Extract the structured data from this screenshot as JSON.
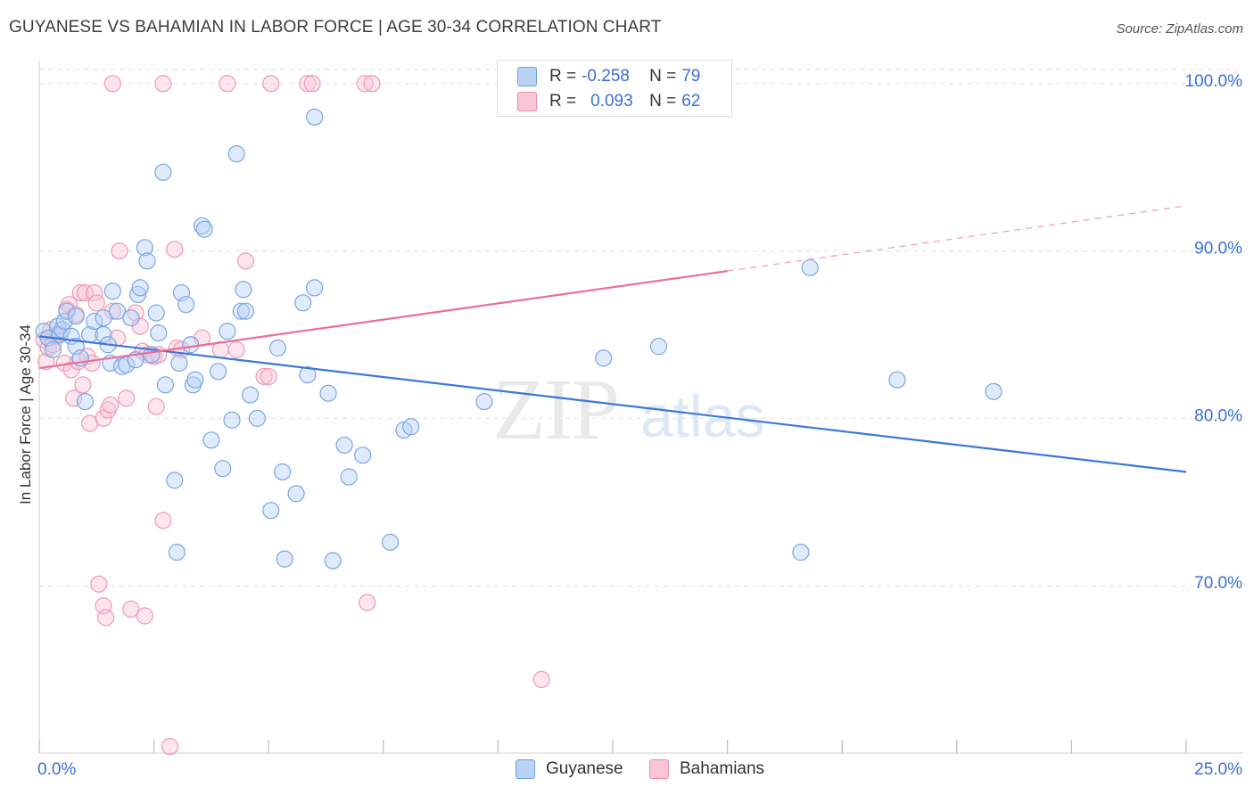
{
  "header": {
    "title": "GUYANESE VS BAHAMIAN IN LABOR FORCE | AGE 30-34 CORRELATION CHART",
    "source": "Source: ZipAtlas.com"
  },
  "watermark": {
    "zip": "ZIP",
    "atlas": "atlas"
  },
  "legend": {
    "rows": [
      {
        "r_label": "R =",
        "r_value": "-0.258",
        "n_label": "N =",
        "n_value": "79",
        "color": "#6fa0e6",
        "fill": "#b9d2f5"
      },
      {
        "r_label": "R =",
        "r_value": "0.093",
        "n_label": "N =",
        "n_value": "62",
        "color": "#ee8aa8",
        "fill": "#f8c6d5"
      }
    ]
  },
  "bottom_legend": {
    "items": [
      {
        "label": "Guyanese",
        "color": "#6fa0e6",
        "fill": "#b9d2f5"
      },
      {
        "label": "Bahamians",
        "color": "#ee8aa8",
        "fill": "#f8c6d5"
      }
    ]
  },
  "chart_data": {
    "type": "scatter",
    "title": "GUYANESE VS BAHAMIAN IN LABOR FORCE | AGE 30-34 CORRELATION CHART",
    "xlabel": "",
    "ylabel": "In Labor Force | Age 30-34",
    "xlim": [
      0,
      25
    ],
    "ylim": [
      60,
      101
    ],
    "x_tick_labels": [
      "0.0%",
      "25.0%"
    ],
    "y_ticks": [
      70,
      80,
      90,
      100
    ],
    "y_tick_labels": [
      "70.0%",
      "80.0%",
      "90.0%",
      "100.0%"
    ],
    "grid": true,
    "colors": {
      "guyanese": "#3a78d8",
      "bahamians": "#e8709a",
      "tick_text": "#3a6fd8"
    },
    "series": [
      {
        "name": "Guyanese",
        "r": -0.258,
        "n": 79,
        "trend": {
          "x0": 0.0,
          "y0": 84.9,
          "x1": 25.0,
          "y1": 76.8
        },
        "points": [
          [
            0.1,
            85.2
          ],
          [
            0.2,
            84.8
          ],
          [
            0.3,
            84.1
          ],
          [
            0.4,
            85.5
          ],
          [
            0.45,
            85.0
          ],
          [
            0.5,
            85.3
          ],
          [
            0.55,
            85.8
          ],
          [
            0.6,
            86.4
          ],
          [
            0.7,
            84.9
          ],
          [
            0.8,
            86.1
          ],
          [
            0.8,
            84.3
          ],
          [
            0.9,
            83.6
          ],
          [
            1.0,
            81.0
          ],
          [
            1.1,
            85.0
          ],
          [
            1.2,
            85.8
          ],
          [
            1.4,
            85.0
          ],
          [
            1.4,
            86.0
          ],
          [
            1.5,
            84.4
          ],
          [
            1.55,
            83.3
          ],
          [
            1.6,
            87.6
          ],
          [
            1.7,
            86.4
          ],
          [
            1.8,
            83.1
          ],
          [
            1.9,
            83.2
          ],
          [
            2.0,
            86.0
          ],
          [
            2.1,
            83.5
          ],
          [
            2.15,
            87.4
          ],
          [
            2.2,
            87.8
          ],
          [
            2.3,
            90.2
          ],
          [
            2.35,
            89.4
          ],
          [
            2.45,
            83.8
          ],
          [
            2.55,
            86.3
          ],
          [
            2.6,
            85.1
          ],
          [
            2.7,
            94.7
          ],
          [
            2.75,
            82.0
          ],
          [
            2.95,
            76.3
          ],
          [
            3.0,
            72.0
          ],
          [
            3.05,
            83.3
          ],
          [
            3.1,
            87.5
          ],
          [
            3.2,
            86.8
          ],
          [
            3.3,
            84.4
          ],
          [
            3.35,
            82.0
          ],
          [
            3.4,
            82.3
          ],
          [
            3.55,
            91.5
          ],
          [
            3.6,
            91.3
          ],
          [
            3.75,
            78.7
          ],
          [
            3.9,
            82.8
          ],
          [
            4.0,
            77.0
          ],
          [
            4.1,
            85.2
          ],
          [
            4.2,
            79.9
          ],
          [
            4.3,
            95.8
          ],
          [
            4.4,
            86.4
          ],
          [
            4.45,
            87.7
          ],
          [
            4.5,
            86.4
          ],
          [
            4.6,
            81.4
          ],
          [
            4.75,
            80.0
          ],
          [
            5.05,
            74.5
          ],
          [
            5.2,
            84.2
          ],
          [
            5.3,
            76.8
          ],
          [
            5.35,
            71.6
          ],
          [
            5.6,
            75.5
          ],
          [
            5.75,
            86.9
          ],
          [
            5.85,
            82.6
          ],
          [
            6.0,
            98.0
          ],
          [
            6.0,
            87.8
          ],
          [
            6.3,
            81.5
          ],
          [
            6.4,
            71.5
          ],
          [
            6.65,
            78.4
          ],
          [
            6.75,
            76.5
          ],
          [
            7.05,
            77.8
          ],
          [
            7.65,
            72.6
          ],
          [
            7.95,
            79.3
          ],
          [
            8.1,
            79.5
          ],
          [
            9.7,
            81.0
          ],
          [
            12.3,
            83.6
          ],
          [
            13.5,
            84.3
          ],
          [
            16.6,
            72.0
          ],
          [
            16.8,
            89.0
          ],
          [
            18.7,
            82.3
          ],
          [
            20.8,
            81.6
          ]
        ]
      },
      {
        "name": "Bahamians",
        "r": 0.093,
        "n": 62,
        "trend": {
          "x0": 0.0,
          "y0": 83.0,
          "x1": 15.0,
          "y1": 88.8,
          "dash_x1": 25.0,
          "dash_y1": 92.7
        },
        "points": [
          [
            0.1,
            84.7
          ],
          [
            0.15,
            83.4
          ],
          [
            0.2,
            84.2
          ],
          [
            0.25,
            85.3
          ],
          [
            0.35,
            84.9
          ],
          [
            0.4,
            85.0
          ],
          [
            0.55,
            83.3
          ],
          [
            0.6,
            86.5
          ],
          [
            0.65,
            86.8
          ],
          [
            0.7,
            82.9
          ],
          [
            0.75,
            81.2
          ],
          [
            0.8,
            86.2
          ],
          [
            0.85,
            83.4
          ],
          [
            0.9,
            87.5
          ],
          [
            0.95,
            82.0
          ],
          [
            1.0,
            87.5
          ],
          [
            1.05,
            83.7
          ],
          [
            1.1,
            79.7
          ],
          [
            1.15,
            83.3
          ],
          [
            1.2,
            87.5
          ],
          [
            1.25,
            86.9
          ],
          [
            1.3,
            70.1
          ],
          [
            1.4,
            68.8
          ],
          [
            1.4,
            80.0
          ],
          [
            1.45,
            68.1
          ],
          [
            1.5,
            80.5
          ],
          [
            1.55,
            80.8
          ],
          [
            1.6,
            86.4
          ],
          [
            1.7,
            84.8
          ],
          [
            1.75,
            90.0
          ],
          [
            1.9,
            81.2
          ],
          [
            2.0,
            68.6
          ],
          [
            2.1,
            86.3
          ],
          [
            2.2,
            85.5
          ],
          [
            2.25,
            84.0
          ],
          [
            2.3,
            68.2
          ],
          [
            2.35,
            83.8
          ],
          [
            2.5,
            83.7
          ],
          [
            2.55,
            80.7
          ],
          [
            2.6,
            83.8
          ],
          [
            2.7,
            73.9
          ],
          [
            2.85,
            60.4
          ],
          [
            2.95,
            90.1
          ],
          [
            3.0,
            84.2
          ],
          [
            3.1,
            84.1
          ],
          [
            3.55,
            84.8
          ],
          [
            3.95,
            84.1
          ],
          [
            4.3,
            84.1
          ],
          [
            4.5,
            89.4
          ],
          [
            4.9,
            82.5
          ],
          [
            5.0,
            82.5
          ],
          [
            1.6,
            100.0
          ],
          [
            2.7,
            100.0
          ],
          [
            4.1,
            100.0
          ],
          [
            5.05,
            100.0
          ],
          [
            5.85,
            100.0
          ],
          [
            5.95,
            100.0
          ],
          [
            7.1,
            100.0
          ],
          [
            7.25,
            100.0
          ],
          [
            7.15,
            69.0
          ],
          [
            10.95,
            64.4
          ],
          [
            0.3,
            84.4
          ]
        ]
      }
    ]
  }
}
